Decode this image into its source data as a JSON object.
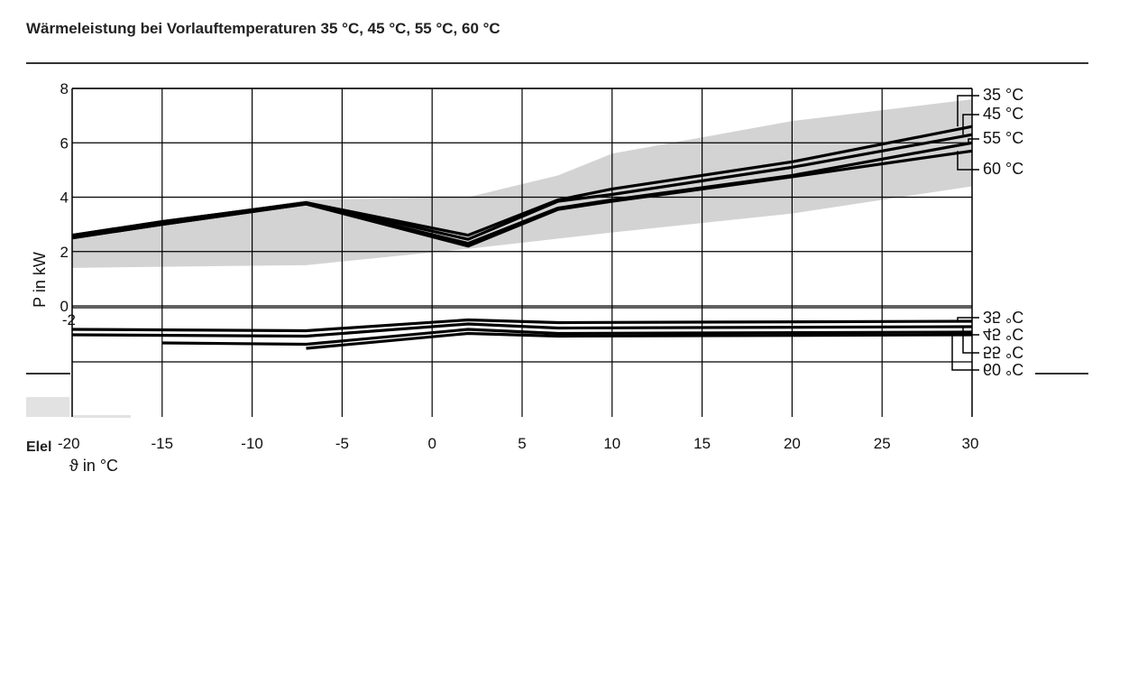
{
  "page": {
    "title": "Wärmeleistung bei Vorlauftemperaturen 35 °C, 45 °C, 55 °C, 60 °C",
    "lower_section_label": "Elel"
  },
  "chart_data": [
    {
      "type": "line",
      "title": "Wärmeleistung bei Vorlauftemperaturen 35 °C, 45 °C, 55 °C, 60 °C",
      "xlabel": "ϑ in °C",
      "ylabel": "P in kW",
      "xlim": [
        -20,
        30
      ],
      "ylim": [
        0,
        8
      ],
      "x_ticks": [
        -20,
        -15,
        -10,
        -5,
        0,
        5,
        10,
        15,
        20,
        25,
        30
      ],
      "x_tick_labels": [
        "-20",
        "-15",
        "-10",
        "-5",
        "0",
        "5",
        "10",
        "15",
        "20",
        "25",
        "30"
      ],
      "y_ticks": [
        0,
        2,
        4,
        6,
        8
      ],
      "y_tick_labels": [
        "0",
        "2",
        "4",
        "6",
        "8"
      ],
      "grid": true,
      "legend": "right, leader lines to line ends",
      "band": {
        "upper": [
          [
            -20,
            2.5
          ],
          [
            -7,
            3.9
          ],
          [
            2,
            4.0
          ],
          [
            7,
            4.8
          ],
          [
            10,
            5.6
          ],
          [
            20,
            6.8
          ],
          [
            30,
            7.6
          ]
        ],
        "lower": [
          [
            -20,
            1.4
          ],
          [
            -7,
            1.5
          ],
          [
            2,
            2.1
          ],
          [
            10,
            2.7
          ],
          [
            20,
            3.4
          ],
          [
            30,
            4.4
          ]
        ],
        "color": "#d3d3d3"
      },
      "series": [
        {
          "name": "35 °C",
          "x": [
            -20,
            -15,
            -7,
            2,
            7,
            10,
            20,
            30
          ],
          "y": [
            2.6,
            3.1,
            3.8,
            2.6,
            3.9,
            4.3,
            5.3,
            6.6
          ]
        },
        {
          "name": "45 °C",
          "x": [
            -20,
            -15,
            -7,
            2,
            7,
            10,
            20,
            30
          ],
          "y": [
            2.6,
            3.1,
            3.8,
            2.45,
            3.85,
            4.1,
            5.1,
            6.3
          ]
        },
        {
          "name": "55 °C",
          "x": [
            -20,
            -15,
            -7,
            2,
            7,
            10,
            20,
            30
          ],
          "y": [
            2.5,
            3.0,
            3.75,
            2.3,
            3.6,
            3.9,
            4.8,
            6.0
          ]
        },
        {
          "name": "60 °C",
          "x": [
            -20,
            -15,
            -7,
            2,
            7,
            10,
            20,
            30
          ],
          "y": [
            2.5,
            3.0,
            3.75,
            2.2,
            3.55,
            3.85,
            4.75,
            5.7
          ]
        }
      ],
      "line_color": "#000000"
    },
    {
      "type": "line",
      "title": "",
      "xlabel": "ϑ in °C",
      "ylabel": "",
      "xlim": [
        -20,
        30
      ],
      "ylim": [
        0,
        2
      ],
      "y_ticks": [
        2
      ],
      "y_tick_labels": [
        "-2"
      ],
      "grid": true,
      "legend": "right, leader lines to line ends (labels drawn mirrored)",
      "series": [
        {
          "name": "35 °C",
          "x": [
            -20,
            -7,
            2,
            7,
            30
          ],
          "y": [
            1.2,
            1.15,
            1.55,
            1.45,
            1.5
          ]
        },
        {
          "name": "45 °C",
          "x": [
            -20,
            -7,
            2,
            7,
            30
          ],
          "y": [
            1.0,
            0.95,
            1.4,
            1.25,
            1.3
          ]
        },
        {
          "name": "55 °C",
          "x": [
            -15,
            -7,
            2,
            7,
            30
          ],
          "y": [
            0.7,
            0.65,
            1.2,
            1.05,
            1.1
          ]
        },
        {
          "name": "60 °C",
          "x": [
            -7,
            2,
            7,
            30
          ],
          "y": [
            0.5,
            1.05,
            0.95,
            1.0
          ]
        }
      ],
      "line_color": "#000000"
    }
  ]
}
